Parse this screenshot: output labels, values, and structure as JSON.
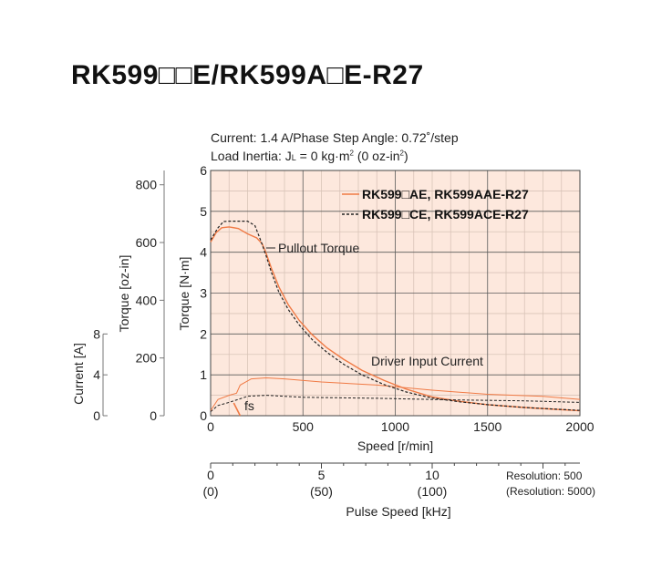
{
  "title": "RK599□□E/RK599A□E-R27",
  "conditions": {
    "line1": "Current: 1.4 A/Phase    Step Angle: 0.72˚/step",
    "line2": "Load Inertia: J",
    "line2_sub": "L",
    "line2_rest": " = 0 kg·m",
    "line2_sup1": "2",
    "line2_mid": " (0 oz-in",
    "line2_sup2": "2",
    "line2_end": ")"
  },
  "resolution": {
    "line1": "Resolution: 500",
    "line2": "(Resolution: 5000)"
  },
  "colors": {
    "background": "#fde8dd",
    "grid_major": "#5a5a5a",
    "grid_minor": "#d9c4b8",
    "series_ae": "#f07a45",
    "series_ce": "#222222"
  },
  "chart_data": {
    "type": "line",
    "xlabel": "Speed [r/min]",
    "ylabel": "Torque [N·m]",
    "xlim": [
      0,
      2000
    ],
    "ylim": [
      0,
      6
    ],
    "x_ticks": [
      "0",
      "500",
      "1000",
      "1500",
      "2000"
    ],
    "y_ticks": [
      "0",
      "1",
      "2",
      "3",
      "4",
      "5",
      "6"
    ],
    "grid": true,
    "legend": "top-right",
    "secondary_axes": {
      "ozin": {
        "label": "Torque [oz-in]",
        "ticks": [
          "0",
          "200",
          "400",
          "600",
          "800"
        ],
        "values": [
          0,
          200,
          400,
          600,
          800
        ]
      },
      "current": {
        "label": "Current [A]",
        "ticks": [
          "0",
          "4",
          "8"
        ],
        "values": [
          0,
          4,
          8
        ],
        "max": 24
      },
      "pulse": {
        "label": "Pulse Speed [kHz]",
        "ticks": [
          "0",
          "5",
          "10"
        ],
        "sub_ticks": [
          "(0)",
          "(50)",
          "(100)"
        ],
        "values": [
          0,
          5,
          10
        ]
      }
    },
    "annotations": {
      "pullout": "Pullout Torque",
      "driver": "Driver Input Current",
      "fs": "fs"
    },
    "series": [
      {
        "name": "RK599□AE, RK599AAE-R27",
        "style": "solid",
        "torque": [
          [
            0,
            4.25
          ],
          [
            30,
            4.48
          ],
          [
            60,
            4.6
          ],
          [
            100,
            4.62
          ],
          [
            150,
            4.58
          ],
          [
            200,
            4.45
          ],
          [
            250,
            4.35
          ],
          [
            280,
            4.2
          ],
          [
            300,
            3.98
          ],
          [
            330,
            3.6
          ],
          [
            370,
            3.15
          ],
          [
            420,
            2.72
          ],
          [
            480,
            2.33
          ],
          [
            550,
            1.98
          ],
          [
            630,
            1.66
          ],
          [
            720,
            1.38
          ],
          [
            820,
            1.11
          ],
          [
            940,
            0.86
          ],
          [
            1060,
            0.65
          ],
          [
            1200,
            0.46
          ],
          [
            1350,
            0.35
          ],
          [
            1500,
            0.27
          ],
          [
            1700,
            0.2
          ],
          [
            2000,
            0.12
          ]
        ],
        "current": [
          [
            0,
            0.5
          ],
          [
            40,
            1.6
          ],
          [
            100,
            2.0
          ],
          [
            140,
            2.2
          ],
          [
            160,
            3.0
          ],
          [
            220,
            3.6
          ],
          [
            300,
            3.7
          ],
          [
            400,
            3.6
          ],
          [
            600,
            3.3
          ],
          [
            900,
            3.0
          ],
          [
            1200,
            2.5
          ],
          [
            1500,
            2.1
          ],
          [
            1800,
            1.9
          ],
          [
            2000,
            1.6
          ]
        ]
      },
      {
        "name": "RK599□CE, RK599ACE-R27",
        "style": "dashed",
        "torque": [
          [
            0,
            4.3
          ],
          [
            40,
            4.6
          ],
          [
            70,
            4.75
          ],
          [
            100,
            4.76
          ],
          [
            200,
            4.76
          ],
          [
            240,
            4.65
          ],
          [
            270,
            4.3
          ],
          [
            300,
            3.92
          ],
          [
            330,
            3.5
          ],
          [
            370,
            3.02
          ],
          [
            420,
            2.6
          ],
          [
            480,
            2.22
          ],
          [
            550,
            1.86
          ],
          [
            630,
            1.55
          ],
          [
            720,
            1.26
          ],
          [
            820,
            1.0
          ],
          [
            940,
            0.76
          ],
          [
            1060,
            0.58
          ],
          [
            1200,
            0.43
          ],
          [
            1350,
            0.34
          ],
          [
            1500,
            0.27
          ],
          [
            1700,
            0.2
          ],
          [
            2000,
            0.13
          ]
        ],
        "current": [
          [
            0,
            0.4
          ],
          [
            40,
            1.0
          ],
          [
            100,
            1.3
          ],
          [
            150,
            1.6
          ],
          [
            200,
            1.9
          ],
          [
            300,
            2.0
          ],
          [
            500,
            1.8
          ],
          [
            900,
            1.7
          ],
          [
            1300,
            1.55
          ],
          [
            1700,
            1.45
          ],
          [
            2000,
            1.3
          ]
        ]
      }
    ]
  }
}
